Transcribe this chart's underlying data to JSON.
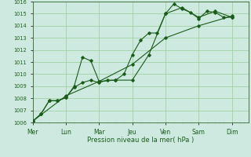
{
  "xlabel": "Pression niveau de la mer( hPa )",
  "background_color": "#ceeae0",
  "grid_color": "#99cc99",
  "line_color": "#1a5c1a",
  "days": [
    "Mer",
    "Lun",
    "Mar",
    "Jeu",
    "Ven",
    "Sam",
    "Dim"
  ],
  "day_positions": [
    0,
    2,
    4,
    6,
    8,
    10,
    12
  ],
  "ylim": [
    1006,
    1016
  ],
  "yticks": [
    1006,
    1007,
    1008,
    1009,
    1010,
    1011,
    1012,
    1013,
    1014,
    1015,
    1016
  ],
  "series1_x": [
    0,
    0.5,
    1.0,
    1.5,
    2.0,
    2.5,
    3.0,
    3.5,
    4.0,
    4.5,
    5.0,
    5.5,
    6.0,
    6.5,
    7.0,
    7.5,
    8.0,
    8.5,
    9.0,
    9.5,
    10.0,
    10.5,
    11.0,
    11.5,
    12.0
  ],
  "series1_y": [
    1006.1,
    1006.7,
    1007.8,
    1007.8,
    1008.05,
    1008.9,
    1009.3,
    1009.5,
    1009.3,
    1009.5,
    1009.5,
    1010.0,
    1011.6,
    1012.8,
    1013.4,
    1013.4,
    1015.0,
    1015.8,
    1015.4,
    1015.1,
    1014.6,
    1015.2,
    1015.1,
    1014.7,
    1014.7
  ],
  "series2_x": [
    0,
    0.5,
    1.0,
    1.5,
    2.0,
    2.5,
    3.0,
    3.5,
    4.0,
    5.0,
    6.0,
    7.0,
    8.0,
    9.0,
    10.0,
    11.0,
    12.0
  ],
  "series2_y": [
    1006.1,
    1006.7,
    1007.8,
    1007.8,
    1008.05,
    1009.0,
    1011.4,
    1011.1,
    1009.4,
    1009.5,
    1009.5,
    1011.6,
    1015.0,
    1015.5,
    1014.7,
    1015.2,
    1014.7
  ],
  "series3_x": [
    0,
    2,
    4,
    6,
    8,
    10,
    12
  ],
  "series3_y": [
    1006.1,
    1008.2,
    1009.4,
    1010.8,
    1013.0,
    1014.0,
    1014.8
  ],
  "xlim": [
    0,
    13.0
  ],
  "xlabel_fontsize": 6.0,
  "ytick_fontsize": 4.8,
  "xtick_fontsize": 5.5,
  "linewidth": 0.8,
  "markersize": 1.8
}
